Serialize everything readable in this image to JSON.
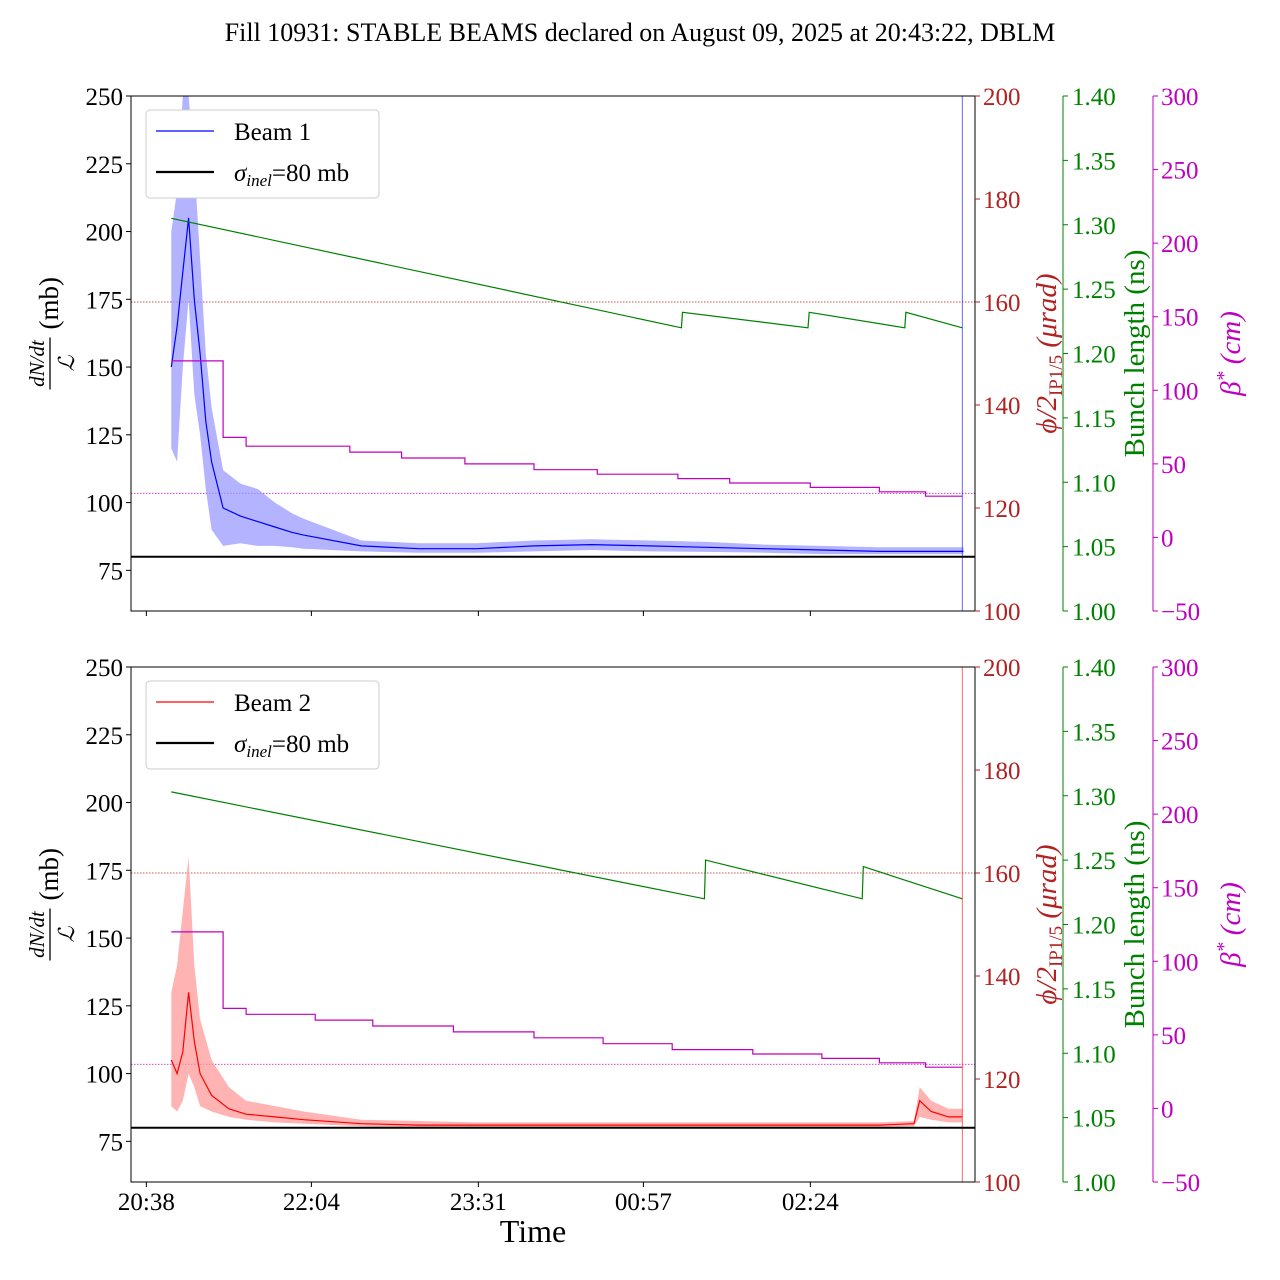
{
  "title": "Fill 10931: STABLE BEAMS declared on August 09, 2025 at 20:43:22, DBLM",
  "colors": {
    "beam1": "#0000ff",
    "beam1_band": "#9999ff",
    "beam2": "#ff0000",
    "beam2_band": "#ff9a9a",
    "crossing_angle": "#b22222",
    "bunch_length": "#008000",
    "beta_star": "#bf00bf",
    "sigma_line": "#000000"
  },
  "chart_data": [
    {
      "type": "line",
      "panel": "top",
      "xlabel": "",
      "x_ticks": [
        "20:38",
        "22:04",
        "23:31",
        "00:57",
        "02:24"
      ],
      "x_range_hours": [
        20.5,
        27.83
      ],
      "legend": [
        "Beam 1",
        "σinel=80 mb"
      ],
      "legend_position": "top-left",
      "axes": {
        "left": {
          "label_num": "dN/dt",
          "label_den": "ℒ",
          "unit": "(mb)",
          "ylim": [
            60,
            250
          ],
          "ticks": [
            "75",
            "100",
            "125",
            "150",
            "175",
            "200",
            "225",
            "250"
          ]
        },
        "right1": {
          "label_main": "ϕ/2",
          "label_sub": "IP1/5",
          "unit": "(μrad)",
          "ylim": [
            100,
            200
          ],
          "ticks": [
            "100",
            "120",
            "140",
            "160",
            "180",
            "200"
          ]
        },
        "right2": {
          "label": "Bunch length (ns)",
          "ylim": [
            1.0,
            1.4
          ],
          "ticks": [
            "1.00",
            "1.05",
            "1.10",
            "1.15",
            "1.20",
            "1.25",
            "1.30",
            "1.35",
            "1.40"
          ]
        },
        "right3": {
          "label_main": "β",
          "label_sup": "*",
          "unit": "(cm)",
          "ylim": [
            -50,
            300
          ],
          "ticks": [
            "−50",
            "0",
            "50",
            "100",
            "150",
            "200",
            "250",
            "300"
          ]
        }
      },
      "sigma_inel_mb": 80,
      "reference_lines": {
        "crossing_angle_urad": 160,
        "beta_star_cm": 30
      },
      "series": [
        {
          "name": "Beam 1",
          "axis": "left",
          "x": [
            20.85,
            20.9,
            20.95,
            21.0,
            21.05,
            21.1,
            21.15,
            21.2,
            21.3,
            21.45,
            21.6,
            21.75,
            21.9,
            22.0,
            22.5,
            23.0,
            23.5,
            24.0,
            24.5,
            25.0,
            25.5,
            26.0,
            26.5,
            27.0,
            27.5,
            27.73
          ],
          "y": [
            150,
            165,
            185,
            205,
            175,
            155,
            130,
            115,
            98,
            95,
            93,
            91,
            89,
            88,
            84,
            83,
            83,
            84,
            84.5,
            84,
            83.5,
            83,
            82.5,
            82,
            82,
            82
          ],
          "band_low": [
            120,
            115,
            150,
            175,
            140,
            125,
            105,
            90,
            84,
            85,
            84,
            84,
            83.5,
            83,
            82,
            81.5,
            81.5,
            82,
            82.5,
            82,
            81.8,
            81.5,
            81,
            81,
            81,
            81
          ],
          "band_high": [
            200,
            215,
            250,
            250,
            225,
            190,
            155,
            135,
            112,
            107,
            105,
            100,
            96,
            94,
            86,
            85,
            85,
            86,
            86.5,
            86,
            85.5,
            84.5,
            84,
            83.5,
            83.5,
            83.5
          ]
        },
        {
          "name": "Bunch length",
          "axis": "right2",
          "x": [
            20.85,
            25.28,
            25.29,
            26.38,
            26.39,
            27.22,
            27.23,
            27.72
          ],
          "y": [
            1.305,
            1.22,
            1.232,
            1.22,
            1.232,
            1.22,
            1.232,
            1.22
          ]
        },
        {
          "name": "β*",
          "axis": "right3",
          "x": [
            20.85,
            21.2,
            21.3,
            21.5,
            21.65,
            22.4,
            22.85,
            23.4,
            24.0,
            24.55,
            25.25,
            25.7,
            26.4,
            27.0,
            27.4,
            27.72
          ],
          "y": [
            120,
            120,
            68,
            62,
            62,
            58,
            54,
            50,
            46,
            43,
            40,
            37,
            34,
            31,
            28,
            28
          ]
        }
      ]
    },
    {
      "type": "line",
      "panel": "bottom",
      "xlabel": "Time",
      "x_ticks": [
        "20:38",
        "22:04",
        "23:31",
        "00:57",
        "02:24"
      ],
      "x_range_hours": [
        20.5,
        27.83
      ],
      "legend": [
        "Beam 2",
        "σinel=80 mb"
      ],
      "legend_position": "top-left",
      "axes": {
        "left": {
          "label_num": "dN/dt",
          "label_den": "ℒ",
          "unit": "(mb)",
          "ylim": [
            60,
            250
          ],
          "ticks": [
            "75",
            "100",
            "125",
            "150",
            "175",
            "200",
            "225",
            "250"
          ]
        },
        "right1": {
          "label_main": "ϕ/2",
          "label_sub": "IP1/5",
          "unit": "(μrad)",
          "ylim": [
            100,
            200
          ],
          "ticks": [
            "100",
            "120",
            "140",
            "160",
            "180",
            "200"
          ]
        },
        "right2": {
          "label": "Bunch length (ns)",
          "ylim": [
            1.0,
            1.4
          ],
          "ticks": [
            "1.00",
            "1.05",
            "1.10",
            "1.15",
            "1.20",
            "1.25",
            "1.30",
            "1.35",
            "1.40"
          ]
        },
        "right3": {
          "label_main": "β",
          "label_sup": "*",
          "unit": "(cm)",
          "ylim": [
            -50,
            300
          ],
          "ticks": [
            "−50",
            "0",
            "50",
            "100",
            "150",
            "200",
            "250",
            "300"
          ]
        }
      },
      "sigma_inel_mb": 80,
      "reference_lines": {
        "crossing_angle_urad": 160,
        "beta_star_cm": 30
      },
      "series": [
        {
          "name": "Beam 2",
          "axis": "left",
          "x": [
            20.85,
            20.9,
            20.95,
            21.0,
            21.05,
            21.1,
            21.2,
            21.35,
            21.5,
            21.75,
            22.0,
            22.5,
            23.0,
            23.5,
            24.0,
            24.5,
            25.0,
            25.5,
            26.0,
            26.5,
            27.0,
            27.3,
            27.35,
            27.45,
            27.6,
            27.72
          ],
          "y": [
            105,
            100,
            108,
            130,
            112,
            100,
            92,
            87,
            85,
            84,
            83,
            81.5,
            81,
            81,
            81,
            81,
            81,
            81,
            81,
            81,
            81,
            81.5,
            90,
            86,
            84,
            84
          ],
          "band_low": [
            88,
            86,
            90,
            100,
            95,
            88,
            86,
            84,
            83,
            82,
            81.5,
            80.5,
            80.3,
            80.3,
            80.3,
            80.3,
            80.3,
            80.3,
            80.3,
            80.3,
            80.3,
            80.6,
            84,
            83,
            82,
            82
          ],
          "band_high": [
            130,
            140,
            160,
            180,
            140,
            120,
            105,
            95,
            90,
            88,
            86,
            83,
            82.5,
            82,
            82,
            82,
            82,
            82,
            82,
            82,
            82,
            82.5,
            95,
            90,
            87,
            87
          ]
        },
        {
          "name": "Bunch length",
          "axis": "right2",
          "x": [
            20.85,
            25.48,
            25.49,
            26.85,
            26.86,
            27.72
          ],
          "y": [
            1.303,
            1.22,
            1.25,
            1.22,
            1.245,
            1.22
          ]
        },
        {
          "name": "β*",
          "axis": "right3",
          "x": [
            20.85,
            21.2,
            21.3,
            21.5,
            21.65,
            22.1,
            22.6,
            23.3,
            24.0,
            24.6,
            25.2,
            25.9,
            26.5,
            27.0,
            27.4,
            27.72
          ],
          "y": [
            120,
            120,
            68,
            64,
            64,
            60,
            56,
            52,
            48,
            44,
            40,
            37,
            34,
            31,
            28,
            28
          ]
        }
      ]
    }
  ]
}
